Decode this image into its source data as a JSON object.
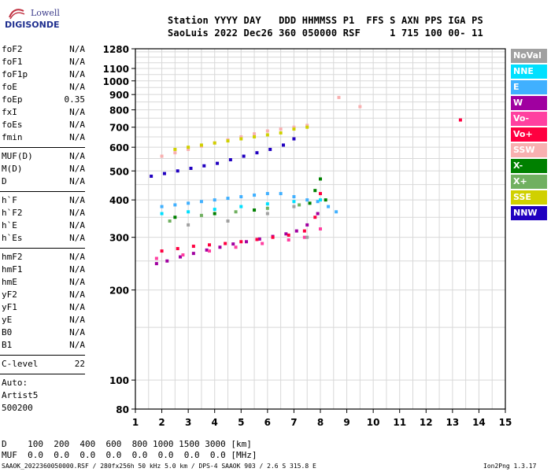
{
  "logo": {
    "line1": "Lowell",
    "line2": "DIGISONDE"
  },
  "header": {
    "row1": "Station YYYY DAY   DDD HHMMSS P1  FFS S AXN PPS IGA PS",
    "row2": "SaoLuis 2022 Dec26 360 050000 RSF     1 715 100 00- 11"
  },
  "params_group1": [
    {
      "name": "foF2",
      "value": "N/A"
    },
    {
      "name": "foF1",
      "value": "N/A"
    },
    {
      "name": "foF1p",
      "value": "N/A"
    },
    {
      "name": "foE",
      "value": "N/A"
    },
    {
      "name": "foEp",
      "value": "0.35"
    },
    {
      "name": "fxI",
      "value": "N/A"
    },
    {
      "name": "foEs",
      "value": "N/A"
    },
    {
      "name": "fmin",
      "value": "N/A"
    }
  ],
  "params_group2": [
    {
      "name": "MUF(D)",
      "value": "N/A"
    },
    {
      "name": "M(D)",
      "value": "N/A"
    },
    {
      "name": "D",
      "value": "N/A"
    }
  ],
  "params_group3": [
    {
      "name": "h`F",
      "value": "N/A"
    },
    {
      "name": "h`F2",
      "value": "N/A"
    },
    {
      "name": "h`E",
      "value": "N/A"
    },
    {
      "name": "h`Es",
      "value": "N/A"
    }
  ],
  "params_group4": [
    {
      "name": "hmF2",
      "value": "N/A"
    },
    {
      "name": "hmF1",
      "value": "N/A"
    },
    {
      "name": "hmE",
      "value": "N/A"
    },
    {
      "name": "yF2",
      "value": "N/A"
    },
    {
      "name": "yF1",
      "value": "N/A"
    },
    {
      "name": "yE",
      "value": "N/A"
    },
    {
      "name": "B0",
      "value": "N/A"
    },
    {
      "name": "B1",
      "value": "N/A"
    }
  ],
  "clevel": {
    "name": "C-level",
    "value": "22"
  },
  "autoscale": [
    "Auto:",
    "Artist5",
    "500200"
  ],
  "legend": [
    {
      "label": "NoVal",
      "color": "#a0a0a0"
    },
    {
      "label": "NNE",
      "color": "#00e0ff"
    },
    {
      "label": "E",
      "color": "#40b0ff"
    },
    {
      "label": "W",
      "color": "#a000a0"
    },
    {
      "label": "Vo-",
      "color": "#ff40a0"
    },
    {
      "label": "Vo+",
      "color": "#ff0040"
    },
    {
      "label": "SSW",
      "color": "#f8b0b0"
    },
    {
      "label": "X-",
      "color": "#008000"
    },
    {
      "label": "X+",
      "color": "#70b060"
    },
    {
      "label": "SSE",
      "color": "#d0d000"
    },
    {
      "label": "NNW",
      "color": "#2000c0"
    }
  ],
  "bottom_rows": [
    "D    100  200  400  600  800 1000 1500 3000 [km]",
    "MUF  0.0  0.0  0.0  0.0  0.0  0.0  0.0  0.0 [MHz]"
  ],
  "footer": {
    "left": "SAAOK_2022360050000.RSF / 280fx256h 50 kHz 5.0 km / DPS-4 SAAOK 903 / 2.6 S 315.8 E",
    "right": "Ion2Png 1.3.17"
  },
  "chart_data": {
    "type": "scatter",
    "title": "",
    "xlabel": "",
    "ylabel": "",
    "xlim": [
      1,
      15
    ],
    "ylim": [
      80,
      1280
    ],
    "y_scale": "log",
    "x_ticks": [
      1,
      2,
      3,
      4,
      5,
      6,
      7,
      8,
      9,
      10,
      11,
      12,
      13,
      14,
      15
    ],
    "y_ticks": [
      80,
      100,
      200,
      300,
      400,
      500,
      600,
      700,
      800,
      900,
      1000,
      1100,
      1280
    ],
    "grid": true,
    "series": [
      {
        "name": "E",
        "color": "#40b0ff",
        "x": [
          2.0,
          2.5,
          3.0,
          3.5,
          4.0,
          4.5,
          5.0,
          5.5,
          6.0,
          6.5,
          7.0,
          7.5,
          7.9,
          8.3,
          8.6
        ],
        "y": [
          380,
          385,
          390,
          395,
          400,
          405,
          410,
          415,
          420,
          420,
          410,
          400,
          395,
          380,
          365
        ]
      },
      {
        "name": "W",
        "color": "#a000a0",
        "x": [
          1.8,
          2.2,
          2.7,
          3.2,
          3.7,
          4.2,
          4.7,
          5.2,
          5.7,
          6.2,
          6.7,
          7.1,
          7.5,
          7.9
        ],
        "y": [
          245,
          250,
          258,
          265,
          272,
          278,
          285,
          290,
          296,
          302,
          308,
          315,
          330,
          360
        ]
      },
      {
        "name": "Vo+",
        "color": "#ff0040",
        "x": [
          2.0,
          2.6,
          3.2,
          3.8,
          4.4,
          5.0,
          5.6,
          6.2,
          6.8,
          7.4,
          7.8,
          8.0,
          13.3
        ],
        "y": [
          270,
          275,
          280,
          283,
          286,
          290,
          295,
          300,
          305,
          315,
          350,
          420,
          740
        ]
      },
      {
        "name": "NNW",
        "color": "#2000c0",
        "x": [
          1.6,
          2.1,
          2.6,
          3.1,
          3.6,
          4.1,
          4.6,
          5.1,
          5.6,
          6.1,
          6.6,
          7.0
        ],
        "y": [
          480,
          490,
          500,
          510,
          520,
          530,
          545,
          560,
          575,
          590,
          610,
          640
        ]
      },
      {
        "name": "SSW",
        "color": "#f8b0b0",
        "x": [
          2.0,
          2.5,
          3.0,
          3.5,
          4.0,
          4.5,
          5.0,
          5.5,
          6.0,
          6.5,
          7.0,
          7.5,
          8.7,
          9.5
        ],
        "y": [
          560,
          575,
          590,
          605,
          620,
          635,
          650,
          665,
          680,
          690,
          700,
          710,
          880,
          820
        ]
      },
      {
        "name": "SSE",
        "color": "#d0d000",
        "x": [
          2.5,
          3.0,
          3.5,
          4.0,
          4.5,
          5.0,
          5.5,
          6.0,
          6.5,
          7.0,
          7.5
        ],
        "y": [
          590,
          600,
          610,
          620,
          630,
          640,
          650,
          660,
          670,
          690,
          700
        ]
      },
      {
        "name": "X-",
        "color": "#008000",
        "x": [
          7.6,
          7.8,
          8.0,
          8.2,
          2.5,
          4.0,
          5.5
        ],
        "y": [
          390,
          430,
          470,
          400,
          350,
          360,
          370
        ]
      },
      {
        "name": "X+",
        "color": "#70b060",
        "x": [
          2.3,
          3.5,
          4.8,
          6.0,
          7.2
        ],
        "y": [
          340,
          355,
          365,
          375,
          385
        ]
      },
      {
        "name": "NNE",
        "color": "#00e0ff",
        "x": [
          2.0,
          3.0,
          4.0,
          5.0,
          6.0,
          7.0,
          8.0
        ],
        "y": [
          360,
          365,
          372,
          380,
          388,
          395,
          400
        ]
      },
      {
        "name": "Vo-",
        "color": "#ff40a0",
        "x": [
          1.8,
          2.8,
          3.8,
          4.8,
          5.8,
          6.8,
          7.4,
          8.0
        ],
        "y": [
          255,
          262,
          270,
          278,
          286,
          294,
          300,
          320
        ]
      },
      {
        "name": "NoVal",
        "color": "#a0a0a0",
        "x": [
          3.0,
          4.5,
          6.0,
          7.0,
          7.5
        ],
        "y": [
          330,
          340,
          360,
          380,
          300
        ]
      }
    ]
  }
}
